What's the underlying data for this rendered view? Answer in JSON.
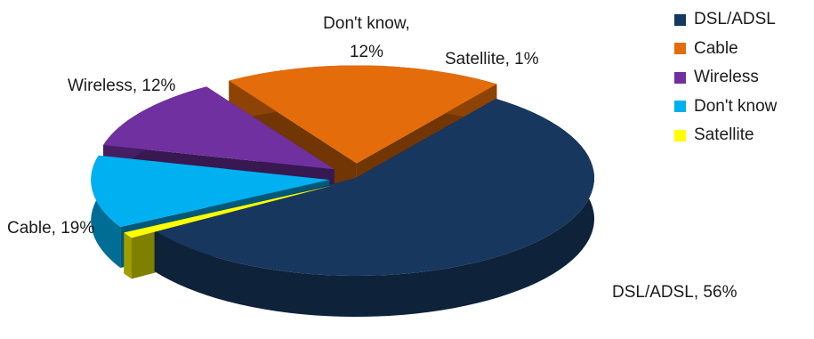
{
  "chart_data": {
    "type": "pie",
    "style": "3d-exploded",
    "legend_position": "right",
    "slices": [
      {
        "name": "DSL/ADSL",
        "value": 56,
        "label": "DSL/ADSL, 56%",
        "color": "#17375E"
      },
      {
        "name": "Satellite",
        "value": 1,
        "label": "Satellite, 1%",
        "color": "#FFFF00"
      },
      {
        "name": "Don't know",
        "value": 12,
        "label_line1": "Don't know,",
        "label_line2": "12%",
        "color": "#00B0F0"
      },
      {
        "name": "Wireless",
        "value": 12,
        "label": "Wireless, 12%",
        "color": "#7030A0"
      },
      {
        "name": "Cable",
        "value": 19,
        "label": "Cable, 19%",
        "color": "#E46C0A"
      }
    ],
    "legend": [
      {
        "name": "DSL/ADSL",
        "color": "#17375E"
      },
      {
        "name": "Cable",
        "color": "#E46C0A"
      },
      {
        "name": "Wireless",
        "color": "#7030A0"
      },
      {
        "name": "Don't know",
        "color": "#00B0F0"
      },
      {
        "name": "Satellite",
        "color": "#FFFF00"
      }
    ]
  }
}
